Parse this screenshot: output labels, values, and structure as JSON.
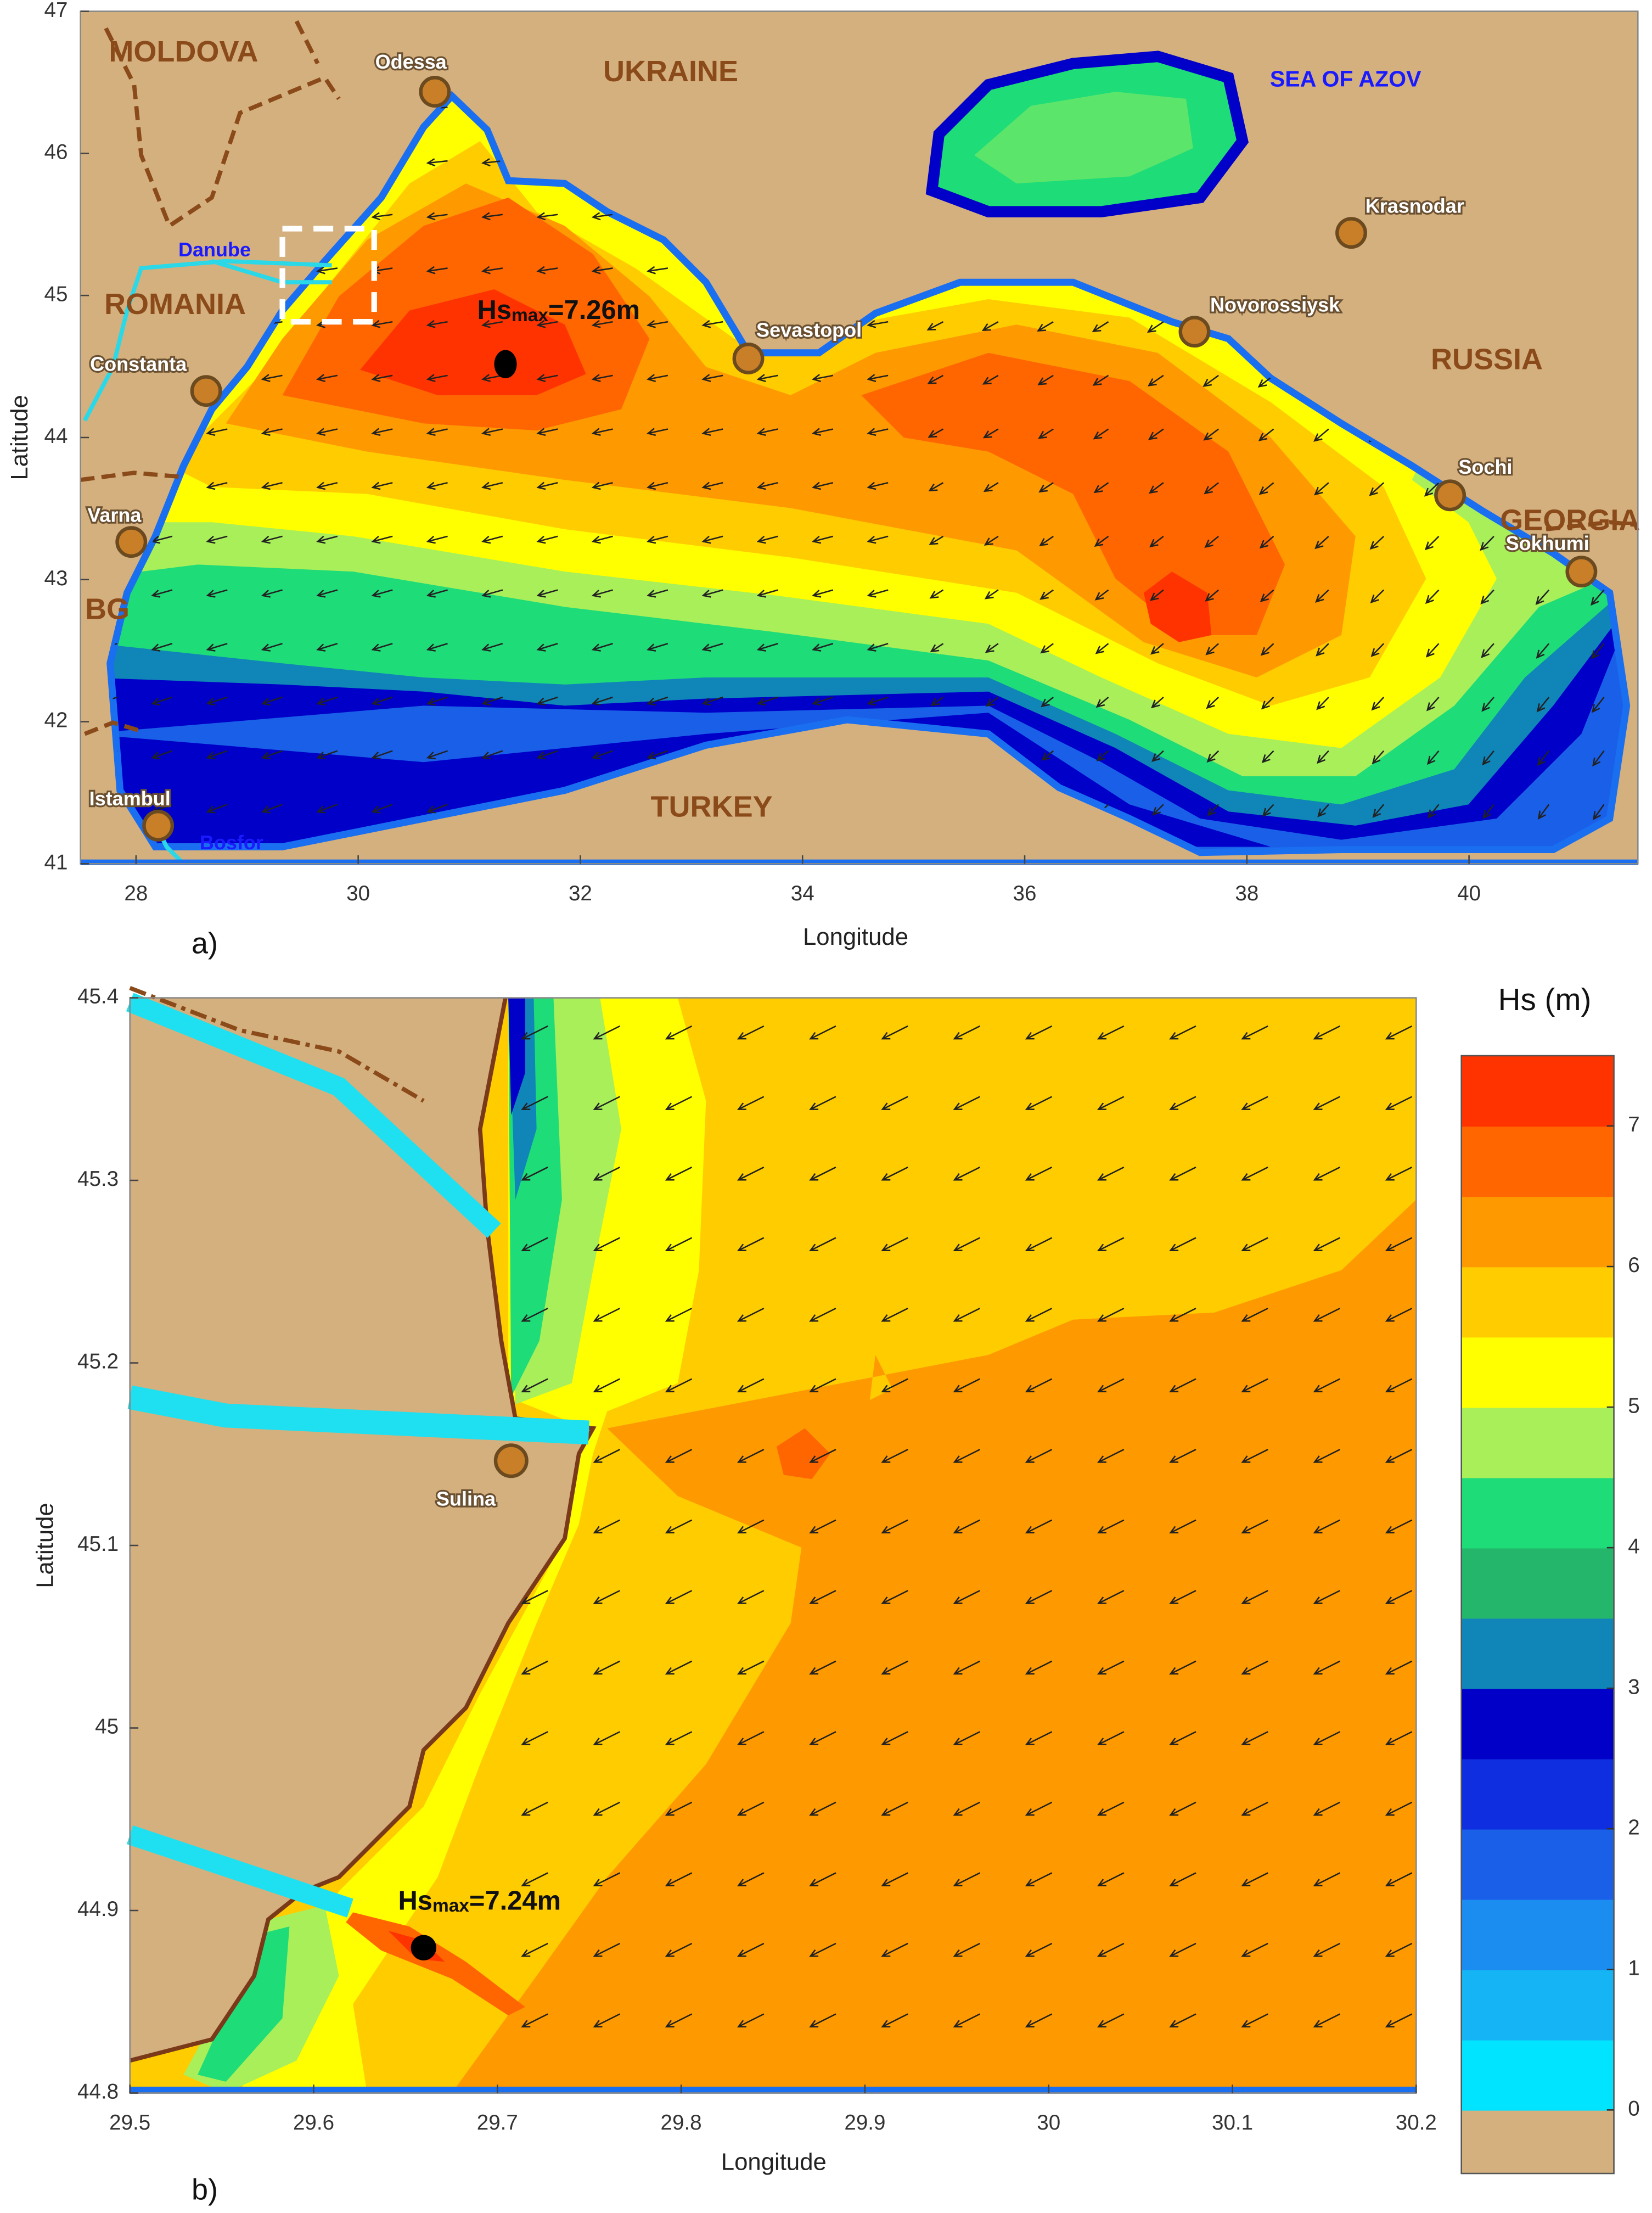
{
  "panel_a": {
    "label": "a)",
    "xlabel": "Longitude",
    "ylabel": "Latitude",
    "xlim": [
      27.5,
      41.52
    ],
    "ylim": [
      41,
      47
    ],
    "xticks": [
      28,
      30,
      32,
      34,
      36,
      38,
      40
    ],
    "yticks": [
      41,
      42,
      43,
      44,
      45,
      46,
      47
    ],
    "countries": [
      "MOLDOVA",
      "UKRAINE",
      "ROMANIA",
      "RUSSIA",
      "GEORGIA",
      "BG",
      "TURKEY"
    ],
    "sea": "SEA OF AZOV",
    "cities": [
      "Odessa",
      "Krasnodar",
      "Novorossiysk",
      "Sevastopol",
      "Constanta",
      "Varna",
      "Sochi",
      "Sokhumi",
      "Istambul"
    ],
    "rivers": [
      "Danube",
      "Bosfor"
    ],
    "annotation": {
      "symbol": "Hs",
      "subscript": "max",
      "value": "=7.26m"
    }
  },
  "panel_b": {
    "label": "b)",
    "xlabel": "Longitude",
    "ylabel": "Latitude",
    "xlim": [
      29.5,
      30.2
    ],
    "ylim": [
      44.8,
      45.4
    ],
    "xticks": [
      29.5,
      29.6,
      29.7,
      29.8,
      29.9,
      30,
      30.1,
      30.2
    ],
    "yticks": [
      44.8,
      44.9,
      45,
      45.1,
      45.2,
      45.3,
      45.4
    ],
    "city": "Sulina",
    "annotation": {
      "symbol": "Hs",
      "subscript": "max",
      "value": "=7.24m"
    }
  },
  "colorbar": {
    "title": "Hs (m)",
    "lim": [
      0,
      7.5
    ],
    "ticks": [
      0,
      1,
      2,
      3,
      4,
      5,
      6,
      7
    ],
    "colors": [
      "#00e4ff",
      "#14b4f5",
      "#1b8df0",
      "#1a5fe8",
      "#0f2ee0",
      "#0000c8",
      "#1085b8",
      "#24b66a",
      "#1edc78",
      "#a8ef5a",
      "#ffff00",
      "#ffcc00",
      "#ff9900",
      "#ff6600",
      "#ff3300"
    ],
    "land_color": "#d4b07e"
  }
}
